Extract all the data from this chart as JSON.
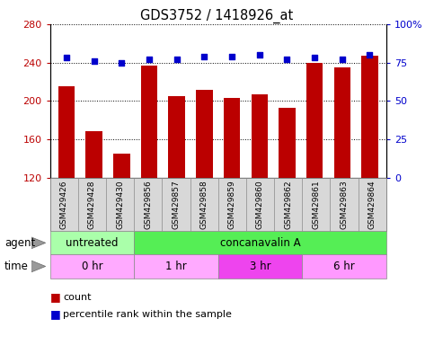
{
  "title": "GDS3752 / 1418926_at",
  "samples": [
    "GSM429426",
    "GSM429428",
    "GSM429430",
    "GSM429856",
    "GSM429857",
    "GSM429858",
    "GSM429859",
    "GSM429860",
    "GSM429862",
    "GSM429861",
    "GSM429863",
    "GSM429864"
  ],
  "counts": [
    215,
    168,
    145,
    237,
    205,
    212,
    203,
    207,
    193,
    240,
    235,
    247
  ],
  "percentiles": [
    78,
    76,
    75,
    77,
    77,
    79,
    79,
    80,
    77,
    78,
    77,
    80
  ],
  "ylim_left": [
    120,
    280
  ],
  "ylim_right": [
    0,
    100
  ],
  "yticks_left": [
    120,
    160,
    200,
    240,
    280
  ],
  "yticks_right": [
    0,
    25,
    50,
    75,
    100
  ],
  "bar_color": "#bb0000",
  "dot_color": "#0000cc",
  "agent_labels": [
    {
      "label": "untreated",
      "start": 0,
      "end": 3,
      "color": "#aaffaa"
    },
    {
      "label": "concanavalin A",
      "start": 3,
      "end": 12,
      "color": "#55ee55"
    }
  ],
  "time_labels": [
    {
      "label": "0 hr",
      "start": 0,
      "end": 3,
      "color": "#ffaaff"
    },
    {
      "label": "1 hr",
      "start": 3,
      "end": 6,
      "color": "#ffaaff"
    },
    {
      "label": "3 hr",
      "start": 6,
      "end": 9,
      "color": "#ee44ee"
    },
    {
      "label": "6 hr",
      "start": 9,
      "end": 12,
      "color": "#ff99ff"
    }
  ],
  "legend_count_color": "#bb0000",
  "legend_dot_color": "#0000cc",
  "xlabel_bg": "#d8d8d8",
  "plot_bg": "#ffffff",
  "grid_color": "#000000"
}
